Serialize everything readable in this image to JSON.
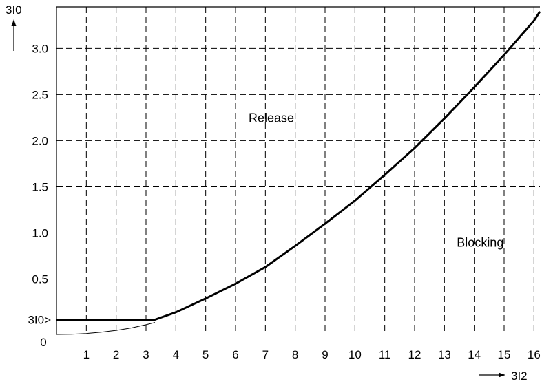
{
  "chart_data": {
    "type": "line",
    "title": "",
    "xlabel": "3I2",
    "ylabel": "3I0",
    "xlim": [
      0,
      16.2
    ],
    "ylim": [
      -0.1,
      3.45
    ],
    "x_ticks": [
      1,
      2,
      3,
      4,
      5,
      6,
      7,
      8,
      9,
      10,
      11,
      12,
      13,
      14,
      15,
      16
    ],
    "y_ticks": [
      0.5,
      1.0,
      1.5,
      2.0,
      2.5,
      3.0
    ],
    "y_tick_labels": [
      "0.5",
      "1.0",
      "1.5",
      "2.0",
      "2.5",
      "3.0"
    ],
    "origin_label": "0",
    "threshold_label": "3I0>",
    "threshold_value": 0.06,
    "grid": true,
    "regions": [
      {
        "label": "Release",
        "x": 7.2,
        "y": 2.2
      },
      {
        "label": "Blocking",
        "x": 14.2,
        "y": 0.85
      }
    ],
    "series": [
      {
        "style": "bold",
        "x": [
          0,
          3.3,
          4,
          5,
          6,
          7,
          8,
          9,
          10,
          11,
          12,
          13,
          14,
          15,
          16,
          16.2
        ],
        "y": [
          0.06,
          0.06,
          0.14,
          0.29,
          0.45,
          0.63,
          0.86,
          1.1,
          1.35,
          1.63,
          1.92,
          2.24,
          2.58,
          2.93,
          3.3,
          3.4
        ]
      },
      {
        "style": "thin",
        "x": [
          0,
          0.5,
          1,
          1.5,
          2,
          2.5,
          3,
          3.3
        ],
        "y": [
          -0.1,
          -0.098,
          -0.09,
          -0.076,
          -0.056,
          -0.03,
          0.005,
          0.03
        ]
      }
    ]
  }
}
